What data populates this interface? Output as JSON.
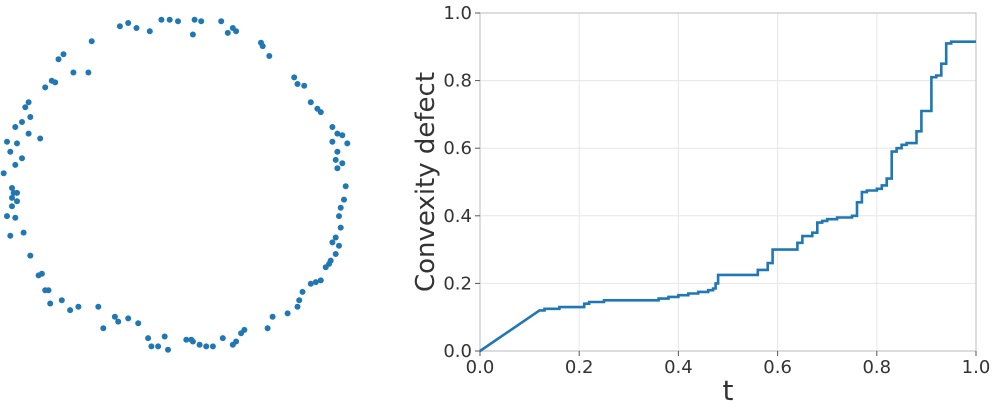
{
  "colors": {
    "accent": "#1f77b4",
    "grid": "#e6e6e6",
    "axis": "#bbbbbb",
    "text": "#333333"
  },
  "chart_data": [
    {
      "type": "scatter",
      "title": "",
      "xlabel": "",
      "ylabel": "",
      "axes_visible": false,
      "xlim": [
        -1.15,
        1.15
      ],
      "ylim": [
        -1.1,
        1.1
      ],
      "series": [
        {
          "points": [
            [
              -0.35,
              0.98
            ],
            [
              -0.3,
              1.0
            ],
            [
              -0.25,
              0.97
            ],
            [
              -0.17,
              0.95
            ],
            [
              -0.1,
              1.02
            ],
            [
              -0.05,
              1.02
            ],
            [
              0.0,
              1.01
            ],
            [
              0.1,
              1.02
            ],
            [
              0.14,
              1.01
            ],
            [
              0.09,
              0.93
            ],
            [
              0.26,
              1.01
            ],
            [
              0.3,
              0.94
            ],
            [
              0.33,
              0.97
            ],
            [
              0.35,
              0.95
            ],
            [
              -0.52,
              0.89
            ],
            [
              -0.63,
              0.7
            ],
            [
              -0.69,
              0.81
            ],
            [
              -0.72,
              0.78
            ],
            [
              -0.76,
              0.65
            ],
            [
              -0.8,
              0.61
            ],
            [
              -0.74,
              0.64
            ],
            [
              0.5,
              0.88
            ],
            [
              0.51,
              0.86
            ],
            [
              0.55,
              0.8
            ],
            [
              0.7,
              0.67
            ],
            [
              0.72,
              0.63
            ],
            [
              0.76,
              0.62
            ],
            [
              0.8,
              0.52
            ],
            [
              0.84,
              0.48
            ],
            [
              0.86,
              0.46
            ],
            [
              -0.9,
              0.52
            ],
            [
              -0.92,
              0.49
            ],
            [
              -0.89,
              0.43
            ],
            [
              -0.94,
              0.4
            ],
            [
              -0.98,
              0.37
            ],
            [
              -0.9,
              0.33
            ],
            [
              -1.03,
              0.28
            ],
            [
              -0.97,
              0.27
            ],
            [
              -1.01,
              0.22
            ],
            [
              -0.94,
              0.18
            ],
            [
              -0.98,
              0.14
            ],
            [
              0.93,
              0.37
            ],
            [
              0.96,
              0.33
            ],
            [
              0.99,
              0.32
            ],
            [
              0.93,
              0.28
            ],
            [
              1.02,
              0.27
            ],
            [
              0.96,
              0.22
            ],
            [
              0.95,
              0.17
            ],
            [
              0.99,
              0.15
            ],
            [
              0.96,
              0.12
            ],
            [
              1.01,
              0.01
            ],
            [
              -0.97,
              -0.03
            ],
            [
              -1.05,
              0.09
            ],
            [
              -1.0,
              0.0
            ],
            [
              -0.99,
              -0.03
            ],
            [
              -1.0,
              -0.06
            ],
            [
              -0.97,
              -0.08
            ],
            [
              -1.0,
              -0.11
            ],
            [
              -1.03,
              -0.17
            ],
            [
              -0.98,
              -0.18
            ],
            [
              -0.93,
              -0.27
            ],
            [
              -1.01,
              -0.29
            ],
            [
              1.0,
              -0.07
            ],
            [
              0.98,
              -0.12
            ],
            [
              0.97,
              -0.17
            ],
            [
              0.98,
              -0.24
            ],
            [
              0.95,
              -0.3
            ],
            [
              0.93,
              -0.33
            ],
            [
              0.97,
              -0.35
            ],
            [
              0.95,
              -0.4
            ],
            [
              0.92,
              -0.44
            ],
            [
              0.91,
              -0.46
            ],
            [
              0.89,
              -0.48
            ],
            [
              -0.89,
              -0.41
            ],
            [
              -0.82,
              -0.52
            ],
            [
              -0.84,
              -0.53
            ],
            [
              -0.78,
              -0.62
            ],
            [
              -0.8,
              -0.62
            ],
            [
              -0.77,
              -0.7
            ],
            [
              -0.7,
              -0.68
            ],
            [
              -0.65,
              -0.74
            ],
            [
              -0.6,
              -0.72
            ],
            [
              -0.48,
              -0.72
            ],
            [
              0.86,
              -0.56
            ],
            [
              0.83,
              -0.57
            ],
            [
              0.8,
              -0.58
            ],
            [
              0.75,
              -0.63
            ],
            [
              0.73,
              -0.68
            ],
            [
              0.72,
              -0.72
            ],
            [
              0.66,
              -0.76
            ],
            [
              0.57,
              -0.78
            ],
            [
              0.54,
              -0.85
            ],
            [
              -0.45,
              -0.85
            ],
            [
              -0.38,
              -0.78
            ],
            [
              -0.36,
              -0.81
            ],
            [
              -0.3,
              -0.79
            ],
            [
              -0.24,
              -0.82
            ],
            [
              -0.18,
              -0.91
            ],
            [
              -0.16,
              -0.96
            ],
            [
              -0.12,
              -0.96
            ],
            [
              -0.08,
              -0.9
            ],
            [
              -0.06,
              -0.98
            ],
            [
              0.05,
              -0.92
            ],
            [
              0.08,
              -0.92
            ],
            [
              0.09,
              -0.93
            ],
            [
              0.13,
              -0.95
            ],
            [
              0.17,
              -0.96
            ],
            [
              0.21,
              -0.96
            ],
            [
              0.27,
              -0.91
            ],
            [
              0.33,
              -0.95
            ],
            [
              0.35,
              -0.93
            ],
            [
              0.38,
              -0.88
            ],
            [
              0.4,
              -0.86
            ],
            [
              -0.54,
              0.7
            ],
            [
              -0.83,
              0.3
            ]
          ]
        }
      ]
    },
    {
      "type": "line",
      "title": "",
      "xlabel": "t",
      "ylabel": "Convexity defect",
      "xlim": [
        0.0,
        1.0
      ],
      "ylim": [
        0.0,
        1.0
      ],
      "xticks": [
        "0.0",
        "0.2",
        "0.4",
        "0.6",
        "0.8",
        "1.0"
      ],
      "yticks": [
        "0.0",
        "0.2",
        "0.4",
        "0.6",
        "0.8",
        "1.0"
      ],
      "grid": true,
      "series": [
        {
          "x": [
            0.0,
            0.05,
            0.1,
            0.12,
            0.13,
            0.15,
            0.16,
            0.2,
            0.21,
            0.22,
            0.25,
            0.3,
            0.35,
            0.36,
            0.38,
            0.4,
            0.42,
            0.44,
            0.46,
            0.47,
            0.475,
            0.48,
            0.55,
            0.56,
            0.58,
            0.59,
            0.62,
            0.64,
            0.65,
            0.67,
            0.68,
            0.69,
            0.7,
            0.72,
            0.75,
            0.76,
            0.77,
            0.78,
            0.8,
            0.81,
            0.82,
            0.83,
            0.84,
            0.85,
            0.86,
            0.87,
            0.88,
            0.89,
            0.9,
            0.91,
            0.92,
            0.93,
            0.94,
            0.95,
            1.0
          ],
          "y": [
            0.0,
            0.05,
            0.1,
            0.12,
            0.125,
            0.125,
            0.13,
            0.13,
            0.14,
            0.145,
            0.15,
            0.15,
            0.15,
            0.155,
            0.16,
            0.165,
            0.17,
            0.175,
            0.18,
            0.185,
            0.2,
            0.225,
            0.225,
            0.24,
            0.26,
            0.3,
            0.3,
            0.32,
            0.34,
            0.35,
            0.38,
            0.385,
            0.39,
            0.395,
            0.4,
            0.44,
            0.47,
            0.475,
            0.48,
            0.49,
            0.51,
            0.59,
            0.6,
            0.61,
            0.615,
            0.615,
            0.65,
            0.71,
            0.71,
            0.81,
            0.815,
            0.85,
            0.91,
            0.915,
            0.915
          ]
        }
      ]
    }
  ]
}
